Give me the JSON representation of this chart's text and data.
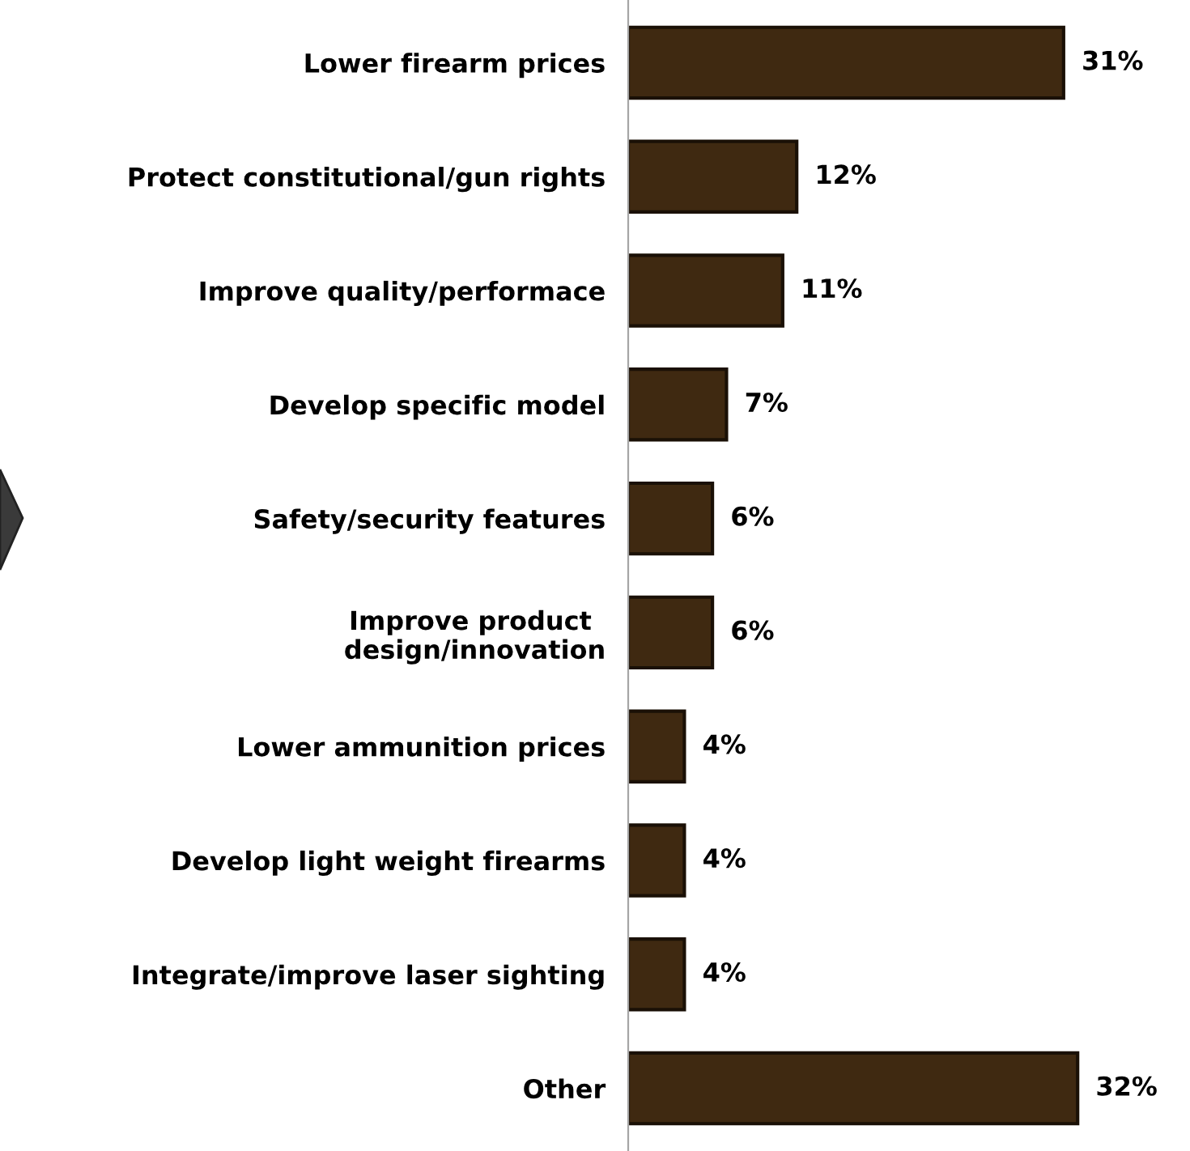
{
  "chart_data": {
    "type": "bar",
    "orientation": "horizontal",
    "categories": [
      "Lower firearm prices",
      "Protect constitutional/gun rights",
      "Improve quality/performace",
      "Develop specific model",
      "Safety/security features",
      "Improve product \ndesign/innovation",
      "Lower ammunition prices",
      "Develop light weight firearms",
      "Integrate/improve laser sighting",
      "Other"
    ],
    "values": [
      31,
      12,
      11,
      7,
      6,
      6,
      4,
      4,
      4,
      32
    ],
    "value_labels": [
      "31%",
      "12%",
      "11%",
      "7%",
      "6%",
      "6%",
      "4%",
      "4%",
      "4%",
      "32%"
    ],
    "color": "#3f2911",
    "grid": false,
    "legend": false
  }
}
